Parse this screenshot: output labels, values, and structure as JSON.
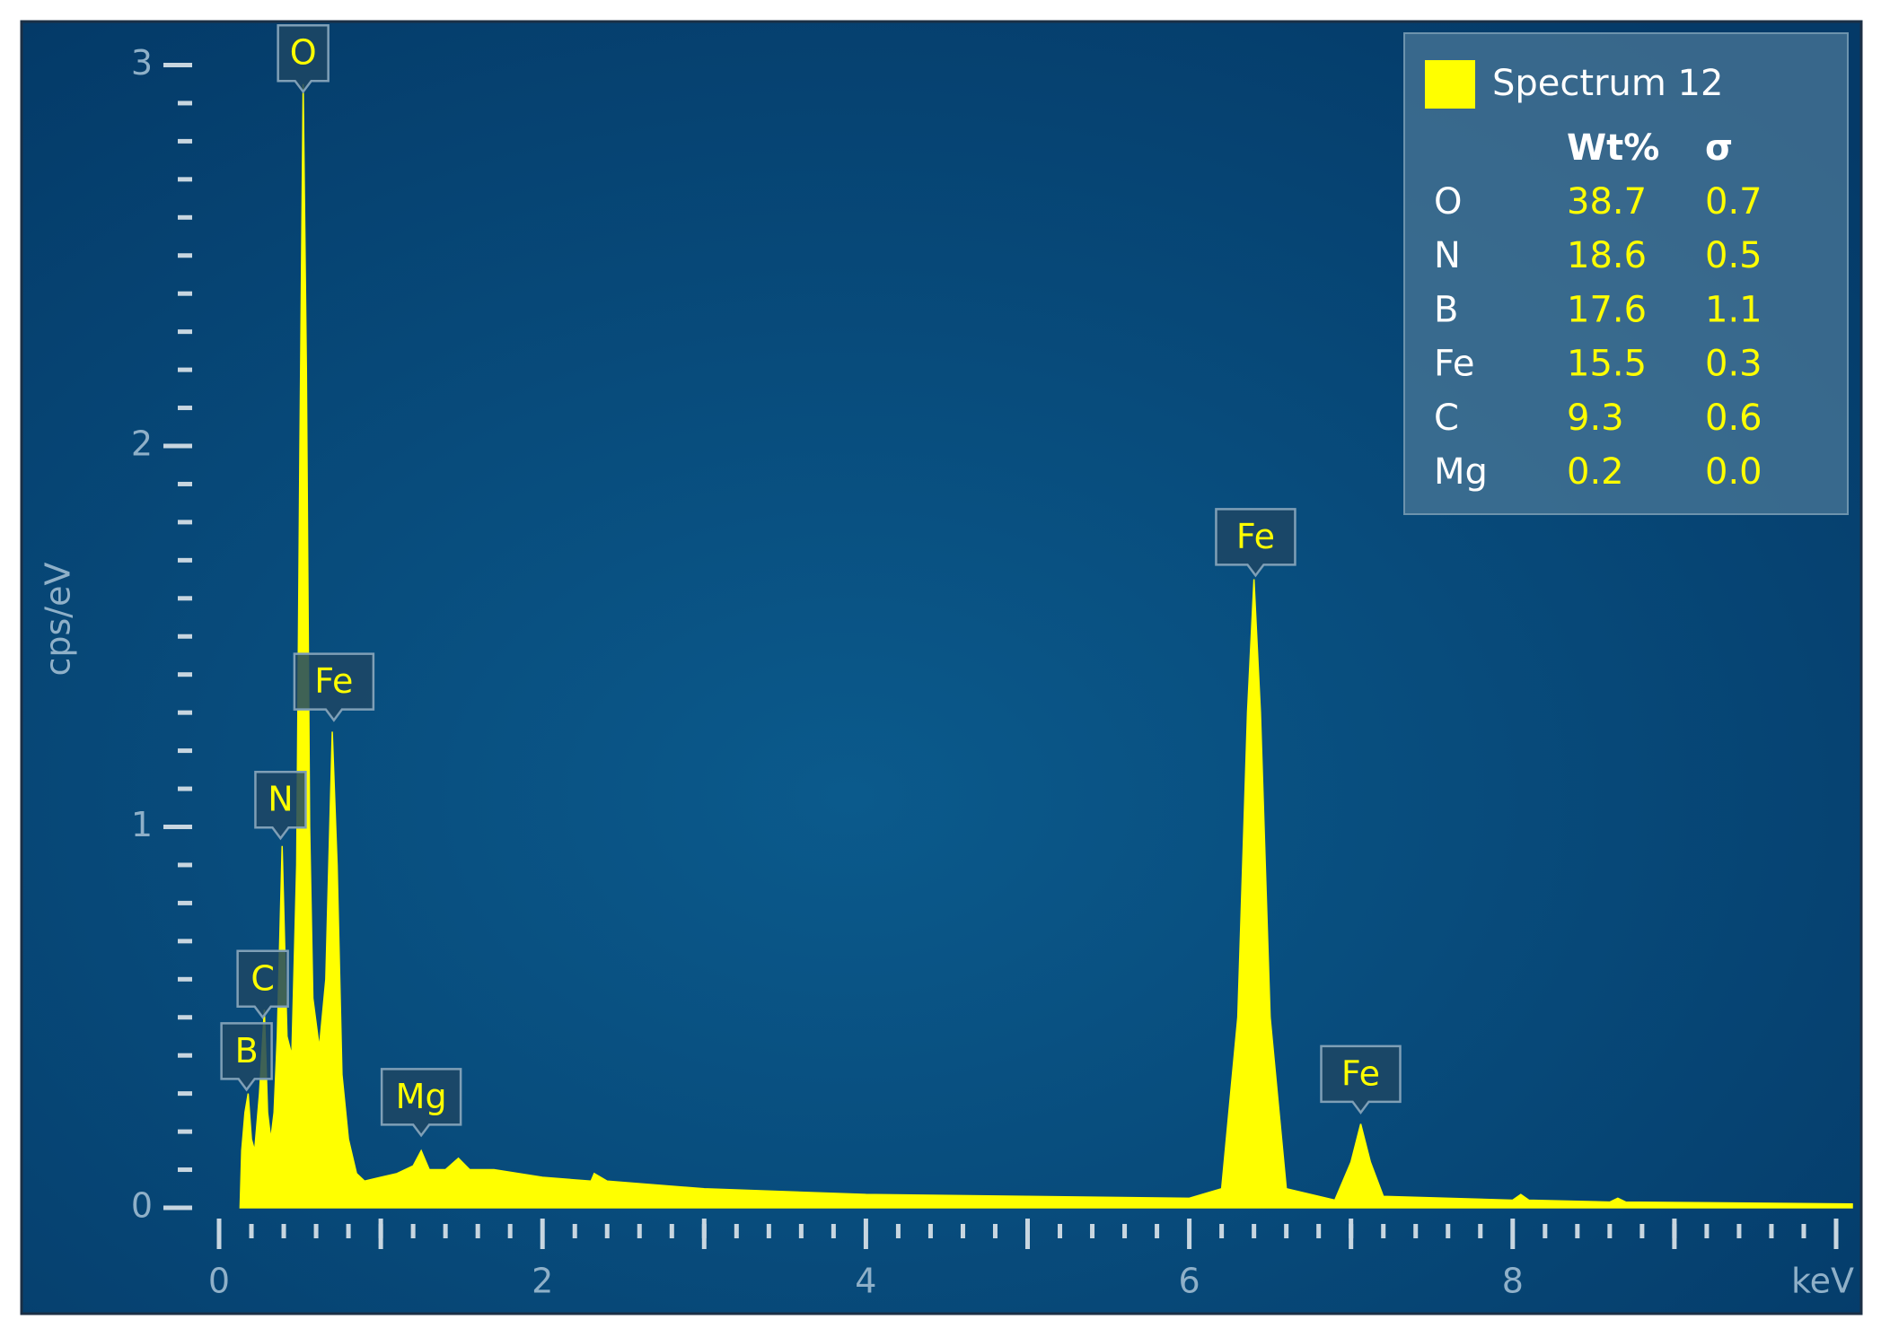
{
  "chart_data": {
    "type": "area",
    "ylabel": "cps/eV",
    "xlabel": "keV",
    "xlim": [
      0,
      10.1
    ],
    "ylim": [
      0,
      3.1
    ],
    "xticks": [
      0,
      2,
      4,
      6,
      8
    ],
    "yticks": [
      0,
      1,
      2,
      3
    ],
    "xminorticks": [
      0.2,
      0.4,
      0.6,
      0.8,
      1,
      1.2,
      1.4,
      1.6,
      1.8,
      2.2,
      2.4,
      2.6,
      2.8,
      3,
      3.2,
      3.4,
      3.6,
      3.8,
      4.2,
      4.4,
      4.6,
      4.8,
      5,
      5.2,
      5.4,
      5.6,
      5.8,
      6.2,
      6.4,
      6.6,
      6.8,
      7,
      7.2,
      7.4,
      7.6,
      7.8,
      8.2,
      8.4,
      8.6,
      8.8,
      9,
      9.2,
      9.4,
      9.6,
      9.8,
      10
    ],
    "xmajorticks": [
      1,
      3,
      5,
      7,
      9,
      10
    ],
    "yminorticks": [
      0.1,
      0.2,
      0.3,
      0.4,
      0.5,
      0.6,
      0.7,
      0.8,
      0.9,
      1.1,
      1.2,
      1.3,
      1.4,
      1.5,
      1.6,
      1.7,
      1.8,
      1.9,
      2.1,
      2.2,
      2.3,
      2.4,
      2.5,
      2.6,
      2.7,
      2.8,
      2.9
    ],
    "x": [
      0.13,
      0.14,
      0.16,
      0.18,
      0.2,
      0.22,
      0.25,
      0.28,
      0.3,
      0.32,
      0.34,
      0.36,
      0.39,
      0.42,
      0.45,
      0.48,
      0.5,
      0.52,
      0.54,
      0.56,
      0.58,
      0.62,
      0.66,
      0.7,
      0.73,
      0.76,
      0.8,
      0.85,
      0.9,
      1.0,
      1.1,
      1.2,
      1.25,
      1.3,
      1.4,
      1.48,
      1.55,
      1.7,
      2.0,
      2.3,
      2.32,
      2.4,
      3,
      4,
      5,
      6,
      6.2,
      6.3,
      6.36,
      6.4,
      6.44,
      6.5,
      6.6,
      6.9,
      7.0,
      7.06,
      7.12,
      7.2,
      8.0,
      8.05,
      8.1,
      8.6,
      8.65,
      8.7,
      10.1
    ],
    "series": [
      {
        "name": "Spectrum 12",
        "color": "#ffff00",
        "values": [
          0,
          0.15,
          0.25,
          0.3,
          0.18,
          0.15,
          0.3,
          0.52,
          0.25,
          0.18,
          0.25,
          0.45,
          0.95,
          0.45,
          0.4,
          0.9,
          2.0,
          2.95,
          2.2,
          1.0,
          0.55,
          0.42,
          0.6,
          1.25,
          0.9,
          0.35,
          0.18,
          0.09,
          0.07,
          0.08,
          0.09,
          0.11,
          0.15,
          0.1,
          0.1,
          0.13,
          0.1,
          0.1,
          0.08,
          0.07,
          0.09,
          0.07,
          0.05,
          0.035,
          0.03,
          0.025,
          0.05,
          0.5,
          1.3,
          1.65,
          1.3,
          0.5,
          0.05,
          0.02,
          0.12,
          0.22,
          0.12,
          0.03,
          0.02,
          0.035,
          0.02,
          0.015,
          0.025,
          0.015,
          0.01
        ]
      }
    ],
    "peak_labels": [
      {
        "text": "B",
        "x": 0.17,
        "y": 0.31
      },
      {
        "text": "C",
        "x": 0.27,
        "y": 0.5
      },
      {
        "text": "N",
        "x": 0.38,
        "y": 0.97
      },
      {
        "text": "O",
        "x": 0.52,
        "y": 2.93
      },
      {
        "text": "Fe",
        "x": 0.71,
        "y": 1.28
      },
      {
        "text": "Mg",
        "x": 1.25,
        "y": 0.19
      },
      {
        "text": "Fe",
        "x": 6.41,
        "y": 1.66
      },
      {
        "text": "Fe",
        "x": 7.06,
        "y": 0.25
      }
    ],
    "legend_table": {
      "columns": [
        "Wt%",
        "σ"
      ],
      "rows": [
        [
          "O",
          "38.7",
          "0.7"
        ],
        [
          "N",
          "18.6",
          "0.5"
        ],
        [
          "B",
          "17.6",
          "1.1"
        ],
        [
          "Fe",
          "15.5",
          "0.3"
        ],
        [
          "C",
          "9.3",
          "0.6"
        ],
        [
          "Mg",
          "0.2",
          "0.0"
        ]
      ]
    }
  }
}
